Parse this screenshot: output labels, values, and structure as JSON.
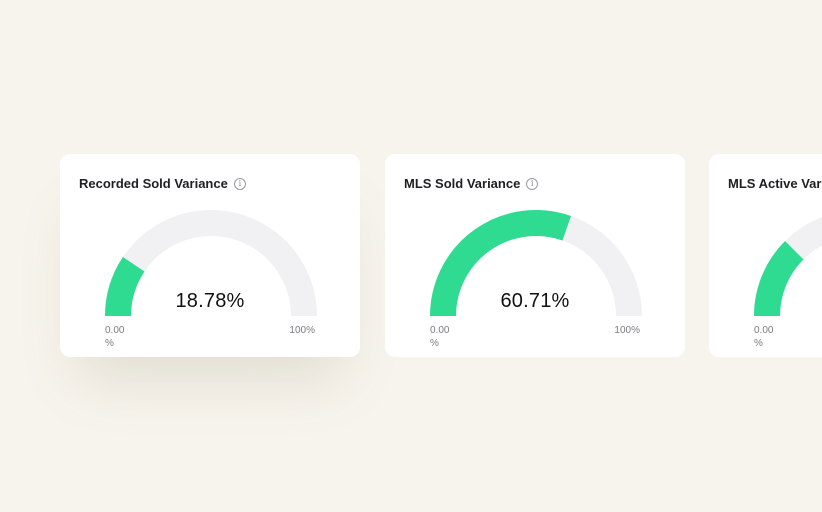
{
  "cards": [
    {
      "title": "Recorded Sold Variance",
      "value_text": "18.78%",
      "fraction": 0.1878,
      "min": "0.00 %",
      "max": "100%",
      "has_info": true
    },
    {
      "title": "MLS Sold Variance",
      "value_text": "60.71%",
      "fraction": 0.6071,
      "min": "0.00 %",
      "max": "100%",
      "has_info": true
    },
    {
      "title": "MLS Active Var",
      "value_text": "",
      "fraction": 0.25,
      "min": "0.00 %",
      "max": "",
      "has_info": false
    }
  ],
  "colors": {
    "fill": "#2edb91",
    "track": "#f1f1f4"
  },
  "icons": {
    "info": "info-icon"
  }
}
